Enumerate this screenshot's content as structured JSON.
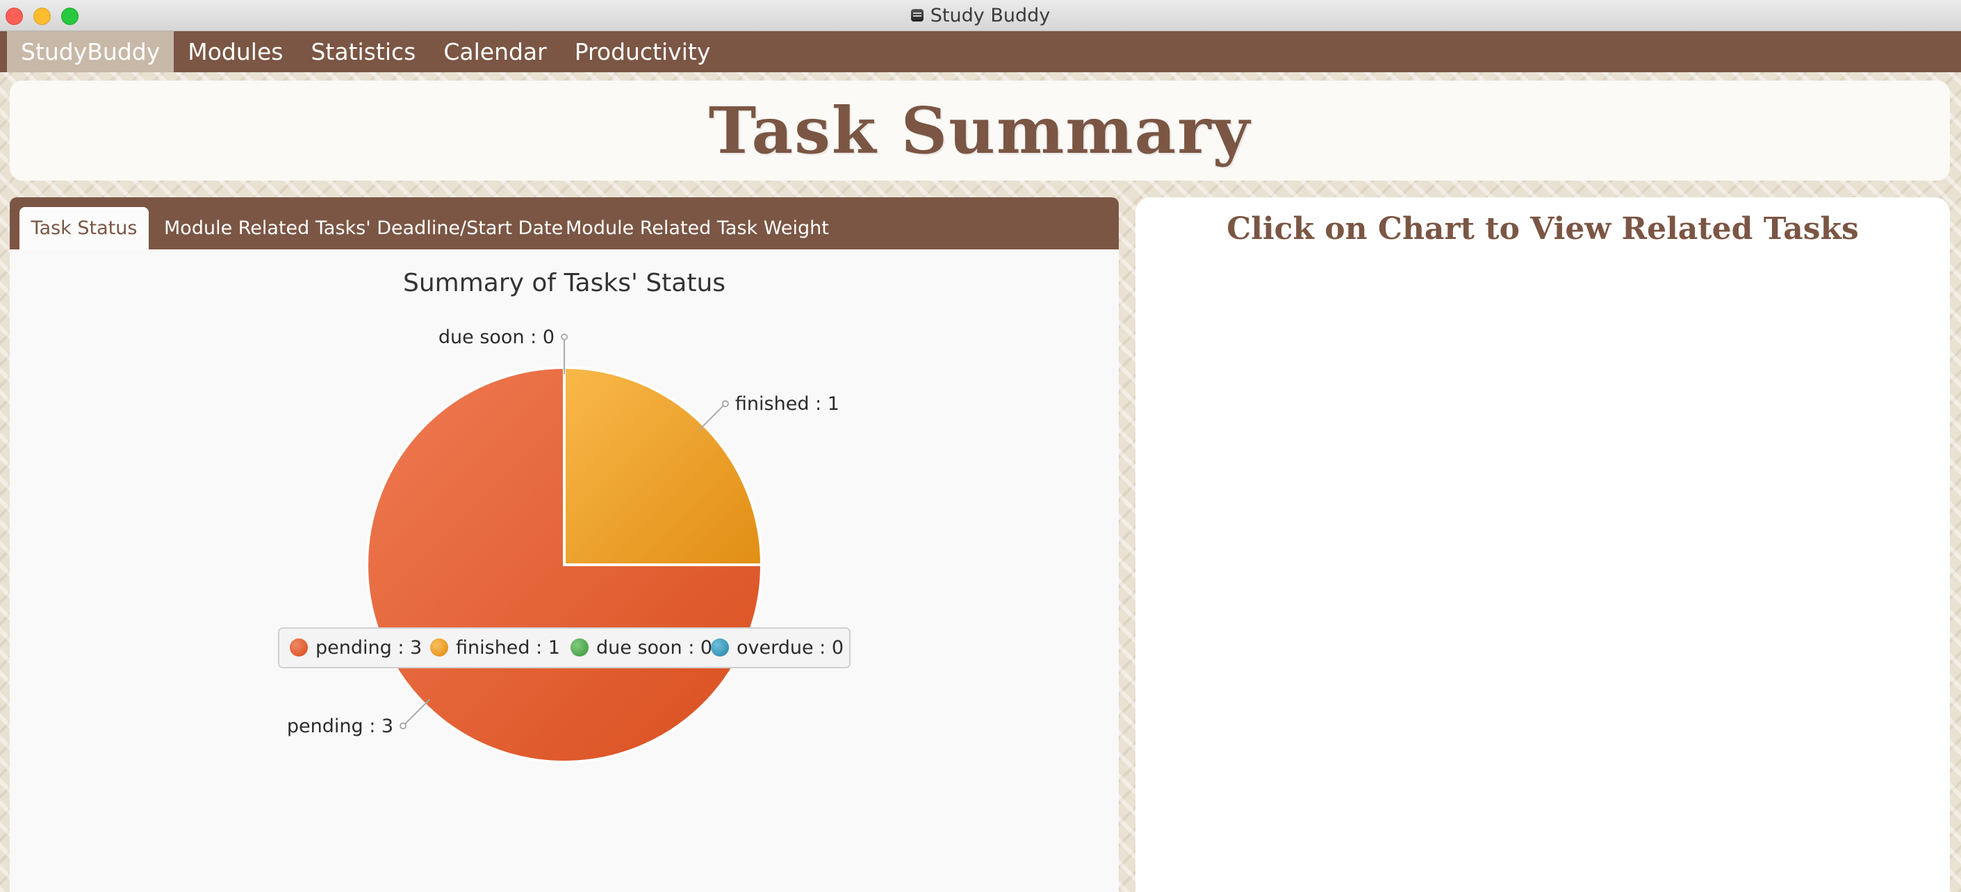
{
  "window": {
    "title": "Study Buddy"
  },
  "menu": {
    "items": [
      {
        "label": "StudyBuddy",
        "active": true
      },
      {
        "label": "Modules"
      },
      {
        "label": "Statistics"
      },
      {
        "label": "Calendar"
      },
      {
        "label": "Productivity"
      }
    ]
  },
  "header": {
    "title": "Task Summary"
  },
  "tabs": [
    {
      "label": "Task Status",
      "active": true
    },
    {
      "label": "Module Related Tasks' Deadline/Start Date"
    },
    {
      "label": "Module Related Task Weight"
    }
  ],
  "right_panel": {
    "heading": "Click on Chart to View Related Tasks"
  },
  "colors": {
    "brown": "#7b5644",
    "pending": "#e0592b",
    "finished": "#f2a22e",
    "due_soon": "#4caa4c",
    "overdue": "#3a9fc0"
  },
  "chart_data": {
    "type": "pie",
    "title": "Summary of Tasks' Status",
    "slices": [
      {
        "name": "pending",
        "value": 3,
        "label": "pending : 3",
        "color": "#e0592b"
      },
      {
        "name": "finished",
        "value": 1,
        "label": "finished : 1",
        "color": "#f2a22e"
      },
      {
        "name": "due soon",
        "value": 0,
        "label": "due soon : 0",
        "color": "#4caa4c"
      },
      {
        "name": "overdue",
        "value": 0,
        "label": "overdue : 0",
        "color": "#3a9fc0"
      }
    ],
    "legend": {
      "placement": "bottom"
    }
  }
}
